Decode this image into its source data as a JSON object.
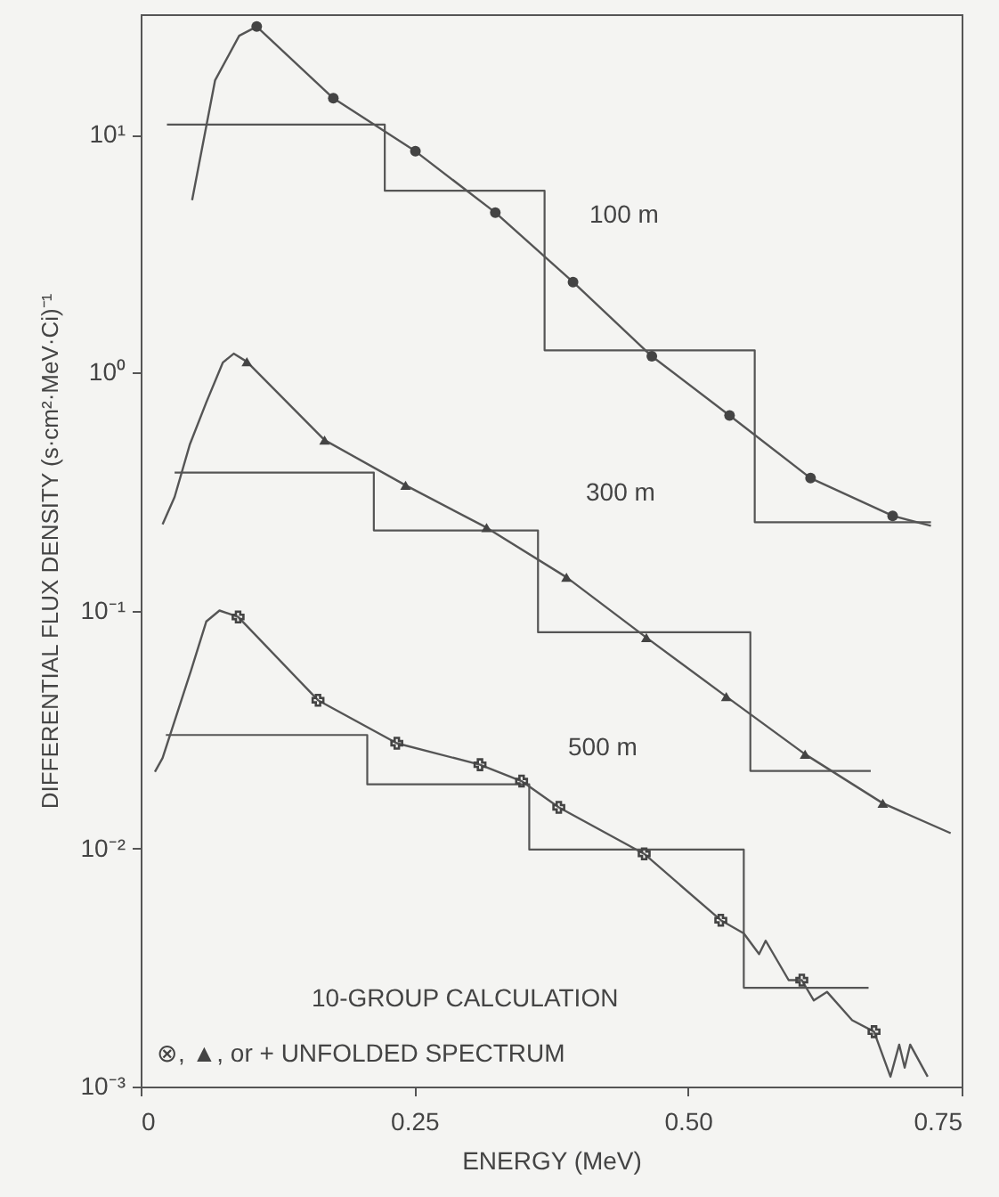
{
  "chart_data": {
    "type": "line",
    "xlabel": "ENERGY (MeV)",
    "ylabel": "DIFFERENTIAL FLUX DENSITY (s·cm²·MeV·Ci)⁻¹",
    "log": "y",
    "grid": false,
    "xlim": [
      0,
      0.75
    ],
    "ylim": [
      0.001,
      32
    ],
    "xticks": [
      0,
      {
        "value": 0.25,
        "label": "0.25"
      },
      {
        "value": 0.5,
        "label": "0.50"
      },
      0.75
    ],
    "yticks": [
      {
        "value": 0.001,
        "label": "10⁻³"
      },
      {
        "value": 0.01,
        "label": "10⁻²"
      },
      {
        "value": 0.1,
        "label": "10⁻¹"
      },
      {
        "value": 1,
        "label": "10⁰"
      },
      {
        "value": 10,
        "label": "10¹"
      }
    ],
    "series": [
      {
        "type": "step",
        "color": "#555555",
        "x": [
          0.024,
          0.223,
          0.369,
          0.561,
          0.722
        ],
        "values": [
          11,
          5.8,
          1.24,
          0.235,
          0.235
        ]
      },
      {
        "type": "step",
        "color": "#555555",
        "x": [
          0.031,
          0.213,
          0.363,
          0.557,
          0.667
        ],
        "values": [
          0.38,
          0.217,
          0.081,
          0.0212,
          0.0212
        ]
      },
      {
        "type": "step",
        "color": "#555555",
        "x": [
          0.023,
          0.207,
          0.355,
          0.551,
          0.665
        ],
        "values": [
          0.03,
          0.0186,
          0.0099,
          0.0026,
          0.0026
        ]
      },
      {
        "color": "#555555",
        "line_style": "solid",
        "x": [
          0.047,
          0.068,
          0.09,
          0.106,
          0.176,
          0.251,
          0.324,
          0.395,
          0.467,
          0.538,
          0.612,
          0.687,
          0.722
        ],
        "values": [
          5.3,
          16.9,
          26,
          28.4,
          14.2,
          8.5,
          4.7,
          2.4,
          1.17,
          0.66,
          0.36,
          0.25,
          0.227
        ]
      },
      {
        "color": "#555555",
        "line_style": "solid",
        "x": [
          0.02,
          0.031,
          0.045,
          0.06,
          0.075,
          0.085,
          0.097,
          0.168,
          0.242,
          0.316,
          0.389,
          0.462,
          0.535,
          0.607,
          0.678,
          0.74
        ],
        "values": [
          0.23,
          0.3,
          0.5,
          0.75,
          1.1,
          1.2,
          1.11,
          0.52,
          0.336,
          0.223,
          0.138,
          0.077,
          0.0435,
          0.0249,
          0.0155,
          0.0116
        ]
      },
      {
        "color": "#555555",
        "line_style": "solid",
        "x": [
          0.013,
          0.02,
          0.046,
          0.06,
          0.072,
          0.089,
          0.162,
          0.234,
          0.31,
          0.348,
          0.382,
          0.46,
          0.53,
          0.551,
          0.565,
          0.571,
          0.592,
          0.604,
          0.615,
          0.627,
          0.65,
          0.67,
          0.685,
          0.693,
          0.698,
          0.703,
          0.719
        ],
        "values": [
          0.021,
          0.024,
          0.056,
          0.09,
          0.1,
          0.094,
          0.042,
          0.0277,
          0.0225,
          0.0192,
          0.0149,
          0.0095,
          0.005,
          0.0044,
          0.0036,
          0.0041,
          0.0028,
          0.0028,
          0.0023,
          0.0025,
          0.0019,
          0.0017,
          0.0011,
          0.0015,
          0.0012,
          0.0015,
          0.0011
        ]
      },
      {
        "type": "scatter",
        "color": "#444444",
        "marker": "circle",
        "x": [
          0.106,
          0.176,
          0.251,
          0.324,
          0.395,
          0.467,
          0.538,
          0.612,
          0.687
        ],
        "values": [
          28.4,
          14.2,
          8.5,
          4.7,
          2.4,
          1.17,
          0.66,
          0.36,
          0.25
        ]
      },
      {
        "type": "scatter",
        "color": "#444444",
        "marker": "triangle",
        "x": [
          0.097,
          0.168,
          0.242,
          0.316,
          0.389,
          0.462,
          0.535,
          0.607,
          0.678
        ],
        "values": [
          1.11,
          0.52,
          0.336,
          0.223,
          0.138,
          0.077,
          0.0435,
          0.0249,
          0.0155
        ]
      },
      {
        "type": "scatter",
        "color": "#444444",
        "marker": "cross",
        "x": [
          0.089,
          0.162,
          0.234,
          0.31,
          0.348,
          0.382,
          0.46,
          0.53,
          0.604,
          0.67
        ],
        "values": [
          0.094,
          0.042,
          0.0277,
          0.0225,
          0.0192,
          0.0149,
          0.0095,
          0.005,
          0.0028,
          0.0017
        ]
      }
    ],
    "annotations": [
      "100 m",
      "300 m",
      "500 m",
      "10-GROUP CALCULATION",
      "⊗, ▲, or + UNFOLDED SPECTRUM"
    ]
  }
}
